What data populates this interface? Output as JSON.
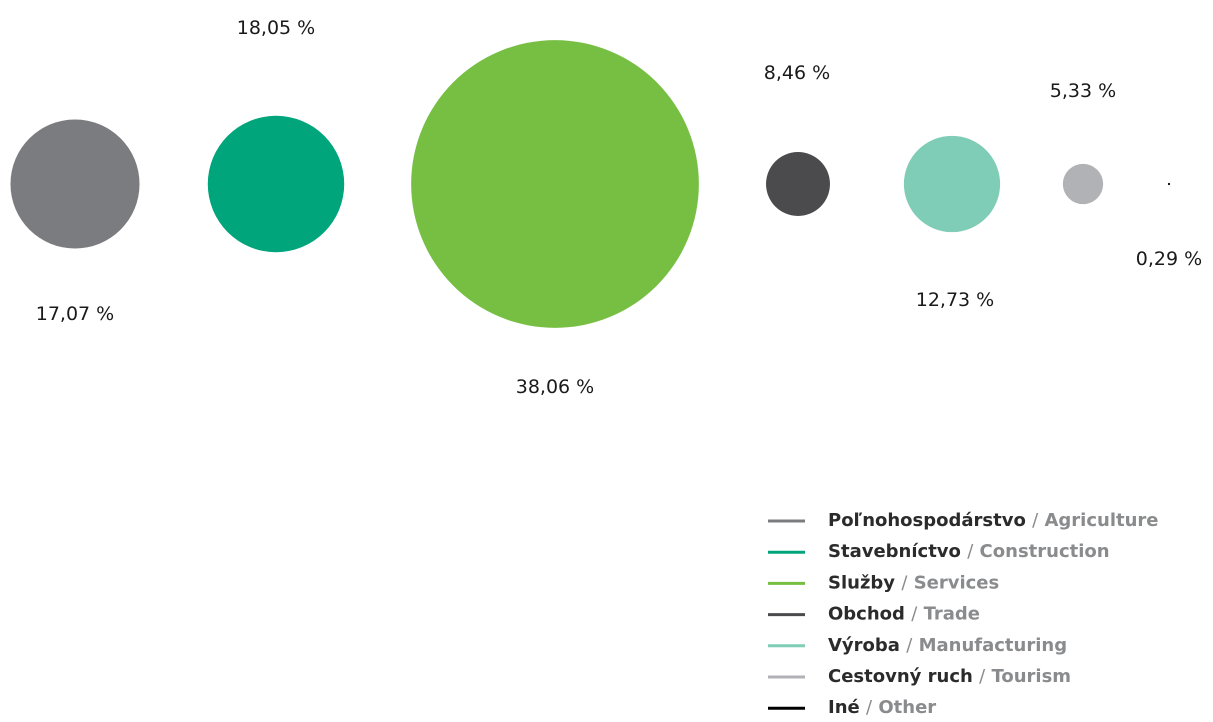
{
  "chart_data": {
    "type": "bubble",
    "separator": "/",
    "series": [
      {
        "name": "Poľnohospodárstvo",
        "name_en": "Agriculture",
        "color": "#7b7c7f",
        "value": 17.07,
        "value_label": "17,07 %"
      },
      {
        "name": "Stavebníctvo",
        "name_en": "Construction",
        "color": "#00a57c",
        "value": 18.05,
        "value_label": "18,05 %"
      },
      {
        "name": "Služby",
        "name_en": "Services",
        "color": "#76bf43",
        "value": 38.06,
        "value_label": "38,06 %"
      },
      {
        "name": "Obchod",
        "name_en": "Trade",
        "color": "#4b4b4d",
        "value": 8.46,
        "value_label": "8,46 %"
      },
      {
        "name": "Výroba",
        "name_en": "Manufacturing",
        "color": "#7fcdb6",
        "value": 12.73,
        "value_label": "12,73 %"
      },
      {
        "name": "Cestovný ruch",
        "name_en": "Tourism",
        "color": "#b1b2b5",
        "value": 5.33,
        "value_label": "5,33 %"
      },
      {
        "name": "Iné",
        "name_en": "Other",
        "color": "#000000",
        "value": 0.29,
        "value_label": "0,29 %"
      }
    ]
  }
}
